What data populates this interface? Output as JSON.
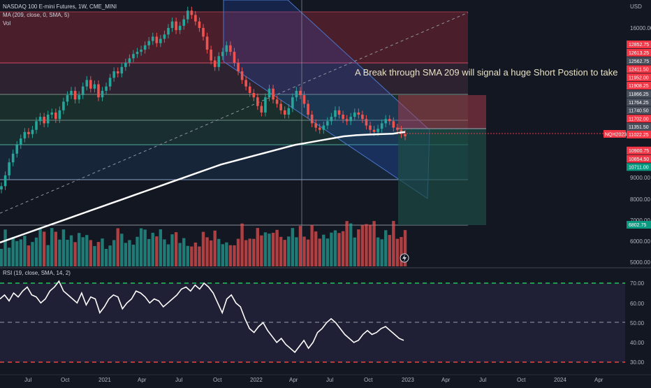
{
  "header": {
    "symbol_line": "NASDAQ 100 E-mini Futures, 1W, CME_MINI",
    "ma_line": "MA (209, close, 0, SMA, 5)",
    "vol_line": "Vol",
    "currency": "USD",
    "rsi_line": "RSI (19, close, SMA, 14, 2)"
  },
  "annotation": "A Break through SMA  209 will signal a huge Short Postion to take",
  "colors": {
    "background": "#131722",
    "up": "#26a69a",
    "down": "#ef5350",
    "sma": "#ffffff",
    "channel": "#2962ff",
    "rsi_line": "#ffffff",
    "rsi_upper": "#22c55e",
    "rsi_lower": "#ef4444",
    "current_tag": "#f23645",
    "target_tag": "#089981"
  },
  "price_axis": {
    "labels": [
      "16000.00",
      "9000.00",
      "8000.00",
      "7000.00",
      "6000.00",
      "5000.00"
    ]
  },
  "price_tags": [
    {
      "text": "12852.75",
      "kind": "red"
    },
    {
      "text": "12613.25",
      "kind": "red"
    },
    {
      "text": "12562.75",
      "kind": "grey"
    },
    {
      "text": "12411.50",
      "kind": "red"
    },
    {
      "text": "11952.00",
      "kind": "red"
    },
    {
      "text": "11908.25",
      "kind": "red"
    },
    {
      "text": "11866.25",
      "kind": "grey"
    },
    {
      "text": "11764.25",
      "kind": "grey"
    },
    {
      "text": "11740.50",
      "kind": "grey"
    },
    {
      "text": "11702.00",
      "kind": "red"
    },
    {
      "text": "11351.50",
      "kind": "grey"
    },
    {
      "text": "11022.25",
      "kind": "red"
    },
    {
      "text": "10900.75",
      "kind": "red"
    },
    {
      "text": "10854.50",
      "kind": "red"
    },
    {
      "text": "10711.00",
      "kind": "green"
    },
    {
      "text": "6802.75",
      "kind": "green"
    }
  ],
  "symbol_tag": "NQH2023",
  "rsi_axis": {
    "labels": [
      "70.00",
      "60.00",
      "50.00",
      "40.00",
      "30.00"
    ]
  },
  "time_axis": {
    "labels": [
      "Jul",
      "Oct",
      "2021",
      "Apr",
      "Jul",
      "Oct",
      "2022",
      "Apr",
      "Jul",
      "Oct",
      "2023",
      "Apr",
      "Jul",
      "Oct",
      "2024",
      "Apr"
    ]
  },
  "chart_data": {
    "type": "candlestick",
    "weekly_close": [
      8700,
      9200,
      9800,
      10200,
      10600,
      10900,
      11200,
      11100,
      11300,
      11700,
      11900,
      11600,
      12000,
      12100,
      11800,
      12200,
      12600,
      12900,
      13100,
      12700,
      12900,
      13300,
      13600,
      13200,
      13400,
      12800,
      13100,
      13300,
      13700,
      14000,
      13900,
      14200,
      14400,
      14600,
      14800,
      14900,
      15000,
      15200,
      15400,
      15600,
      15300,
      15500,
      15700,
      16000,
      16300,
      15900,
      16100,
      16400,
      16800,
      16600,
      16300,
      16000,
      15600,
      15000,
      14500,
      14200,
      14700,
      14900,
      15200,
      14900,
      14400,
      14000,
      13600,
      13300,
      13000,
      12800,
      12400,
      12100,
      12800,
      13200,
      12700,
      12500,
      12200,
      12000,
      12300,
      12800,
      13100,
      12900,
      12500,
      12000,
      11600,
      11400,
      11300,
      11500,
      11700,
      11900,
      12200,
      12000,
      11800,
      11700,
      11900,
      12100,
      12000,
      11800,
      11500,
      11300,
      11200,
      11350,
      11600,
      11800,
      11700,
      11400,
      11300,
      11100,
      11000
    ],
    "sma209_close": [
      6100,
      6300,
      6500,
      6700,
      6900,
      7100,
      7300,
      7500,
      7700,
      7900,
      8100,
      8300,
      8500,
      8700,
      8900,
      9100,
      9300,
      9500,
      9700,
      9850,
      10000,
      10150,
      10300,
      10450,
      10600,
      10700,
      10800,
      10900,
      11000,
      11050,
      11080,
      11100,
      11120,
      11200
    ],
    "volume_scale": "relative",
    "rsi": [
      62,
      64,
      61,
      65,
      63,
      66,
      68,
      64,
      63,
      60,
      62,
      66,
      68,
      71,
      66,
      64,
      62,
      60,
      65,
      59,
      63,
      62,
      55,
      58,
      62,
      64,
      63,
      57,
      60,
      62,
      66,
      65,
      63,
      60,
      62,
      61,
      58,
      60,
      62,
      64,
      67,
      68,
      66,
      69,
      67,
      70,
      68,
      65,
      60,
      55,
      62,
      64,
      60,
      58,
      52,
      47,
      45,
      48,
      50,
      46,
      43,
      40,
      42,
      39,
      37,
      35,
      38,
      41,
      37,
      40,
      45,
      47,
      50,
      52,
      50,
      47,
      44,
      42,
      40,
      41,
      44,
      46,
      44,
      45,
      47,
      48,
      46,
      44,
      42,
      41
    ],
    "rsi_levels": {
      "upper": 70,
      "middle": 50,
      "lower": 30
    },
    "sma_period": 209,
    "rsi_period": 19
  }
}
